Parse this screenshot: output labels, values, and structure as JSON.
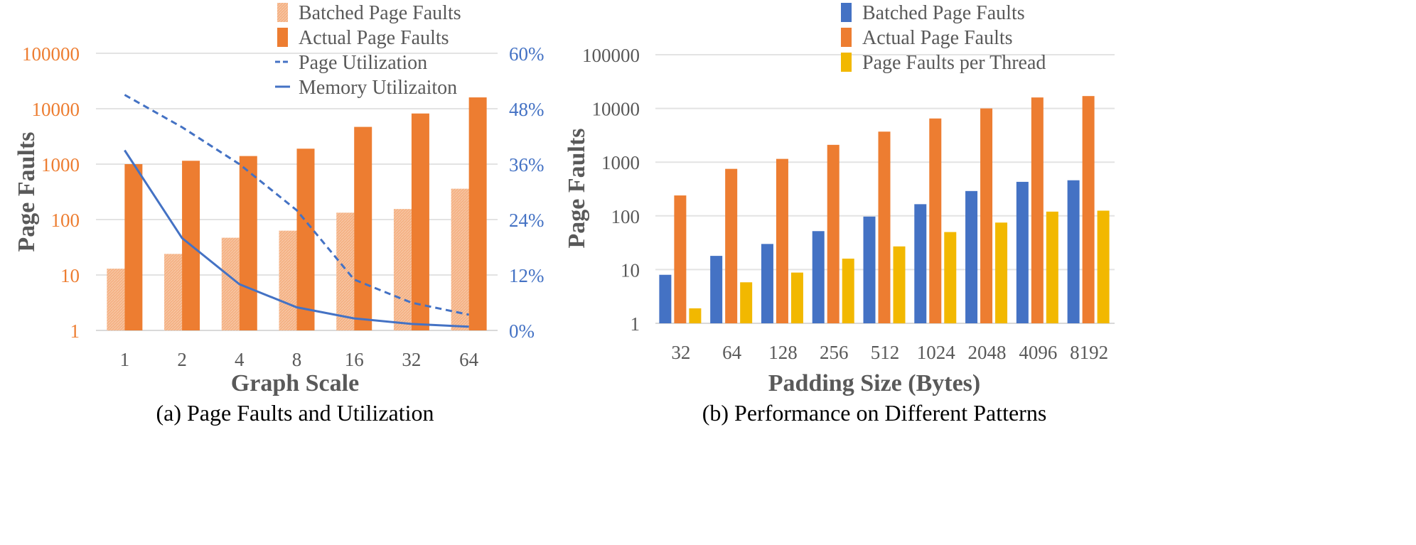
{
  "chart_data": [
    {
      "type": "bar",
      "caption": "(a) Page Faults and Utilization",
      "xlabel": "Graph Scale",
      "ylabel": "Page Faults",
      "y_scale": "log",
      "ylim": [
        1,
        100000
      ],
      "yticks": [
        "1",
        "10",
        "100",
        "1000",
        "10000",
        "100000"
      ],
      "y2lim": [
        0,
        60
      ],
      "y2ticks": [
        "0%",
        "12%",
        "24%",
        "36%",
        "48%",
        "60%"
      ],
      "categories": [
        "1",
        "2",
        "4",
        "8",
        "16",
        "32",
        "64"
      ],
      "grid": true,
      "legend": "top-right",
      "series": [
        {
          "name": "Batched Page Faults",
          "kind": "bar",
          "color": "#F4B183",
          "values": [
            13,
            24,
            47,
            63,
            133,
            155,
            360
          ]
        },
        {
          "name": "Actual Page Faults",
          "kind": "bar",
          "color": "#ED7D31",
          "values": [
            1000,
            1150,
            1400,
            1900,
            4700,
            8200,
            16000
          ]
        },
        {
          "name": "Page Utilization",
          "kind": "line",
          "style": "dashed",
          "axis": "right",
          "color": "#4472C4",
          "values": [
            51,
            44,
            36,
            26,
            11,
            6,
            3.4
          ]
        },
        {
          "name": "Memory Utilizaiton",
          "kind": "line",
          "style": "solid",
          "axis": "right",
          "color": "#4472C4",
          "values": [
            39,
            20,
            10,
            5,
            2.6,
            1.4,
            0.8
          ]
        }
      ],
      "left_tick_color": "#ED7D31",
      "right_tick_color": "#4472C4"
    },
    {
      "type": "bar",
      "caption": "(b) Performance on Different Patterns",
      "xlabel": "Padding Size (Bytes)",
      "ylabel": "Page Faults",
      "y_scale": "log",
      "ylim": [
        1,
        100000
      ],
      "yticks": [
        "1",
        "10",
        "100",
        "1000",
        "10000",
        "100000"
      ],
      "categories": [
        "32",
        "64",
        "128",
        "256",
        "512",
        "1024",
        "2048",
        "4096",
        "8192"
      ],
      "grid": true,
      "legend": "top-right",
      "series": [
        {
          "name": "Batched Page Faults",
          "kind": "bar",
          "color": "#4472C4",
          "values": [
            8,
            18,
            30,
            52,
            97,
            165,
            290,
            430,
            460
          ]
        },
        {
          "name": "Actual Page Faults",
          "kind": "bar",
          "color": "#ED7D31",
          "values": [
            240,
            750,
            1150,
            2100,
            3700,
            6500,
            10000,
            16000,
            17000
          ]
        },
        {
          "name": "Page Faults per Thread",
          "kind": "bar",
          "color": "#F2B800",
          "values": [
            1.9,
            5.8,
            8.8,
            16,
            27,
            50,
            75,
            120,
            125
          ]
        }
      ],
      "tick_color": "#595959"
    }
  ]
}
